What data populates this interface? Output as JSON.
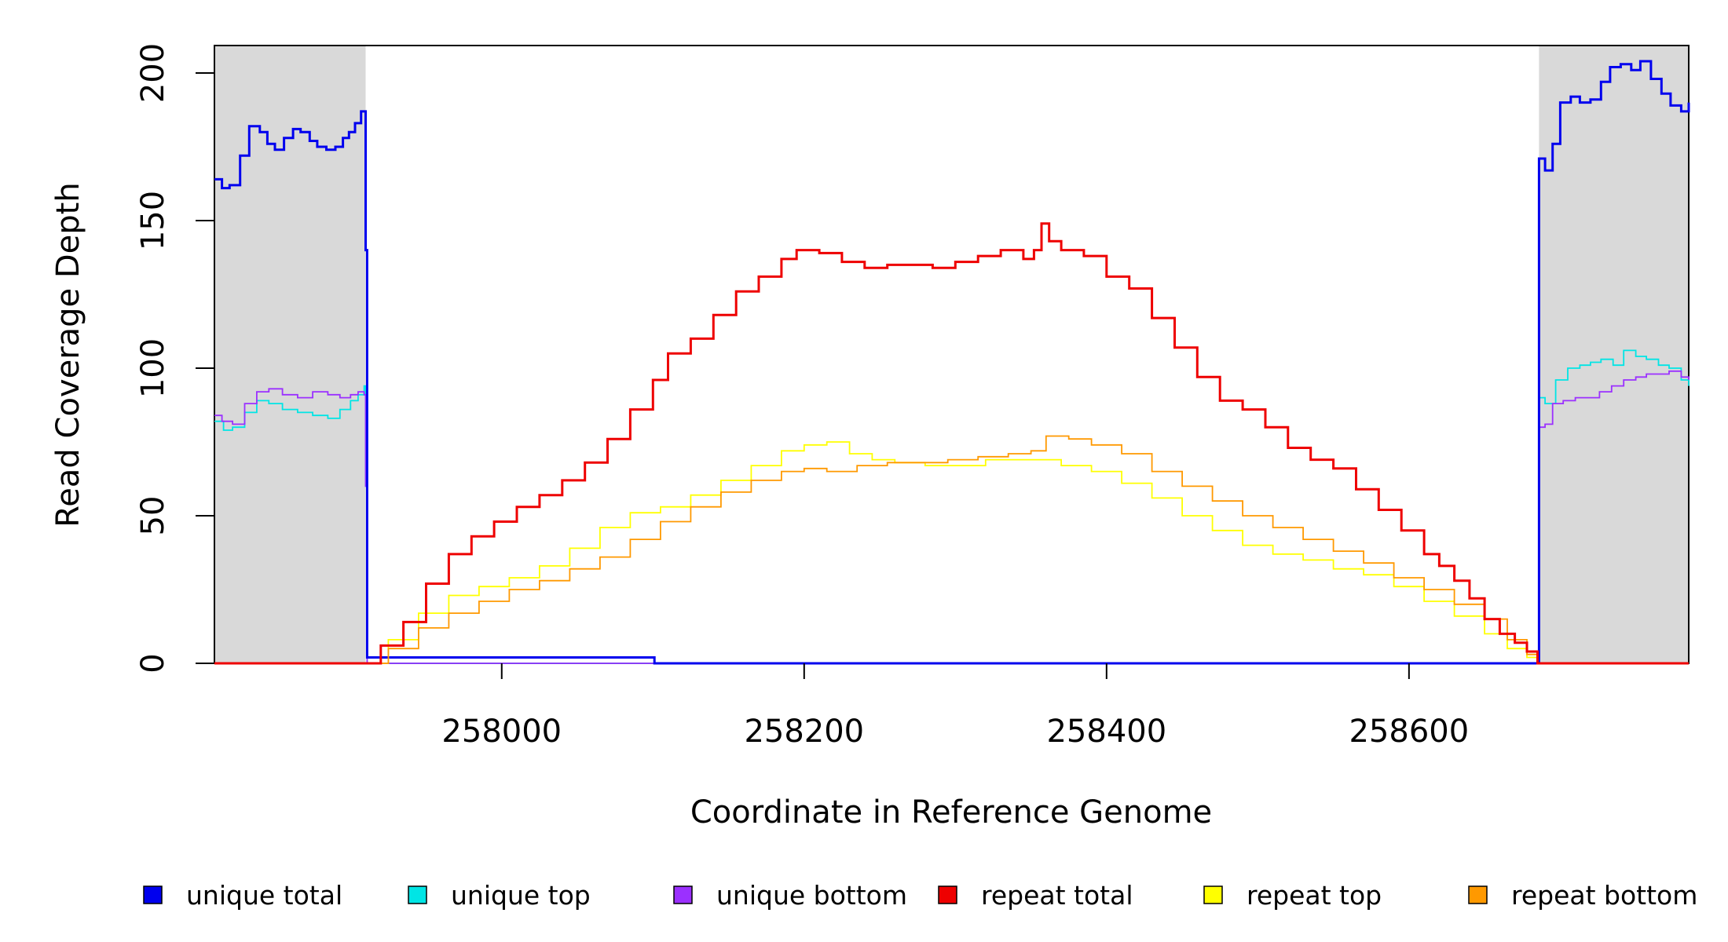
{
  "chart_data": {
    "type": "line",
    "title": "",
    "xlabel": "Coordinate in Reference Genome",
    "ylabel": "Read Coverage Depth",
    "xlim": [
      257810,
      258785
    ],
    "ylim": [
      0,
      205
    ],
    "x_ticks": [
      258000,
      258200,
      258400,
      258600
    ],
    "x_tick_labels": [
      "258000",
      "258200",
      "258400",
      "258600"
    ],
    "y_ticks": [
      0,
      50,
      100,
      150,
      200
    ],
    "y_tick_labels": [
      "0",
      "50",
      "100",
      "150",
      "200"
    ],
    "shaded_regions": [
      {
        "x": [
          257810,
          257910
        ],
        "color": "#d9d9d9"
      },
      {
        "x": [
          258686,
          258785
        ],
        "color": "#d9d9d9"
      }
    ],
    "grid": false,
    "legend_position": "bottom",
    "series": [
      {
        "name": "unique total",
        "color": "#0000ee",
        "x": [
          257810,
          257815,
          257820,
          257827,
          257833,
          257840,
          257845,
          257850,
          257856,
          257862,
          257867,
          257873,
          257878,
          257884,
          257890,
          257895,
          257899,
          257903,
          257907,
          257909,
          257910,
          257911,
          258100,
          258101,
          258685,
          258686,
          258690,
          258695,
          258700,
          258707,
          258713,
          258720,
          258727,
          258733,
          258740,
          258747,
          258753,
          258760,
          258767,
          258773,
          258780,
          258785
        ],
        "y": [
          164,
          161,
          162,
          172,
          182,
          180,
          176,
          174,
          178,
          181,
          180,
          177,
          175,
          174,
          175,
          178,
          180,
          183,
          187,
          187,
          140,
          2,
          2,
          0,
          0,
          171,
          167,
          176,
          190,
          192,
          190,
          191,
          197,
          202,
          203,
          201,
          204,
          198,
          193,
          189,
          187,
          190
        ]
      },
      {
        "name": "unique top",
        "color": "#00e5e5",
        "x": [
          257810,
          257816,
          257822,
          257830,
          257838,
          257846,
          257855,
          257865,
          257875,
          257885,
          257893,
          257900,
          257905,
          257909,
          257910,
          257911,
          258685,
          258686,
          258690,
          258697,
          258705,
          258713,
          258720,
          258727,
          258735,
          258742,
          258750,
          258757,
          258765,
          258772,
          258780,
          258785
        ],
        "y": [
          82,
          79,
          80,
          85,
          89,
          88,
          86,
          85,
          84,
          83,
          86,
          89,
          91,
          94,
          60,
          0,
          0,
          90,
          88,
          96,
          100,
          101,
          102,
          103,
          101,
          106,
          104,
          103,
          101,
          100,
          96,
          94
        ]
      },
      {
        "name": "unique bottom",
        "color": "#9b30ff",
        "x": [
          257810,
          257815,
          257822,
          257830,
          257838,
          257846,
          257855,
          257865,
          257875,
          257885,
          257893,
          257900,
          257905,
          257909,
          257910,
          257911,
          258685,
          258686,
          258690,
          258695,
          258702,
          258710,
          258718,
          258726,
          258734,
          258742,
          258750,
          258757,
          258765,
          258772,
          258780,
          258785
        ],
        "y": [
          84,
          82,
          81,
          88,
          92,
          93,
          91,
          90,
          92,
          91,
          90,
          91,
          92,
          91,
          60,
          0,
          0,
          80,
          81,
          88,
          89,
          90,
          90,
          92,
          94,
          96,
          97,
          98,
          98,
          99,
          97,
          96
        ]
      },
      {
        "name": "repeat total",
        "color": "#ee0000",
        "x": [
          257810,
          257910,
          257920,
          257935,
          257950,
          257965,
          257980,
          257995,
          258010,
          258025,
          258040,
          258055,
          258070,
          258085,
          258100,
          258110,
          258125,
          258140,
          258155,
          258170,
          258185,
          258195,
          258210,
          258225,
          258240,
          258255,
          258270,
          258285,
          258300,
          258315,
          258330,
          258345,
          258352,
          258357,
          258362,
          258370,
          258385,
          258400,
          258415,
          258430,
          258445,
          258460,
          258475,
          258490,
          258505,
          258520,
          258535,
          258550,
          258565,
          258580,
          258595,
          258610,
          258620,
          258630,
          258640,
          258650,
          258660,
          258670,
          258678,
          258685,
          258785
        ],
        "y": [
          0,
          0,
          6,
          14,
          27,
          37,
          43,
          48,
          53,
          57,
          62,
          68,
          76,
          86,
          96,
          105,
          110,
          118,
          126,
          131,
          137,
          140,
          139,
          136,
          134,
          135,
          135,
          134,
          136,
          138,
          140,
          137,
          140,
          149,
          143,
          140,
          138,
          131,
          127,
          117,
          107,
          97,
          89,
          86,
          80,
          73,
          69,
          66,
          59,
          52,
          45,
          37,
          33,
          28,
          22,
          15,
          10,
          7,
          4,
          0,
          0
        ]
      },
      {
        "name": "repeat top",
        "color": "#ffff00",
        "x": [
          257810,
          257910,
          257925,
          257945,
          257965,
          257985,
          258005,
          258025,
          258045,
          258065,
          258085,
          258105,
          258125,
          258145,
          258165,
          258185,
          258200,
          258215,
          258230,
          258245,
          258260,
          258280,
          258300,
          258320,
          258340,
          258355,
          258370,
          258390,
          258410,
          258430,
          258450,
          258470,
          258490,
          258510,
          258530,
          258550,
          258570,
          258590,
          258610,
          258630,
          258650,
          258665,
          258678,
          258685,
          258785
        ],
        "y": [
          0,
          0,
          8,
          17,
          23,
          26,
          29,
          33,
          39,
          46,
          51,
          53,
          57,
          62,
          67,
          72,
          74,
          75,
          71,
          69,
          68,
          67,
          67,
          69,
          69,
          69,
          67,
          65,
          61,
          56,
          50,
          45,
          40,
          37,
          35,
          32,
          30,
          26,
          21,
          16,
          10,
          5,
          2,
          0,
          0
        ]
      },
      {
        "name": "repeat bottom",
        "color": "#ff9900",
        "x": [
          257810,
          257910,
          257925,
          257945,
          257965,
          257985,
          258005,
          258025,
          258045,
          258065,
          258085,
          258105,
          258125,
          258145,
          258165,
          258185,
          258200,
          258215,
          258235,
          258255,
          258275,
          258295,
          258315,
          258335,
          258350,
          258360,
          258375,
          258390,
          258410,
          258430,
          258450,
          258470,
          258490,
          258510,
          258530,
          258550,
          258570,
          258590,
          258610,
          258630,
          258650,
          258665,
          258678,
          258685,
          258785
        ],
        "y": [
          0,
          0,
          5,
          12,
          17,
          21,
          25,
          28,
          32,
          36,
          42,
          48,
          53,
          58,
          62,
          65,
          66,
          65,
          67,
          68,
          68,
          69,
          70,
          71,
          72,
          77,
          76,
          74,
          71,
          65,
          60,
          55,
          50,
          46,
          42,
          38,
          34,
          29,
          25,
          20,
          15,
          8,
          3,
          0,
          0
        ]
      }
    ]
  }
}
